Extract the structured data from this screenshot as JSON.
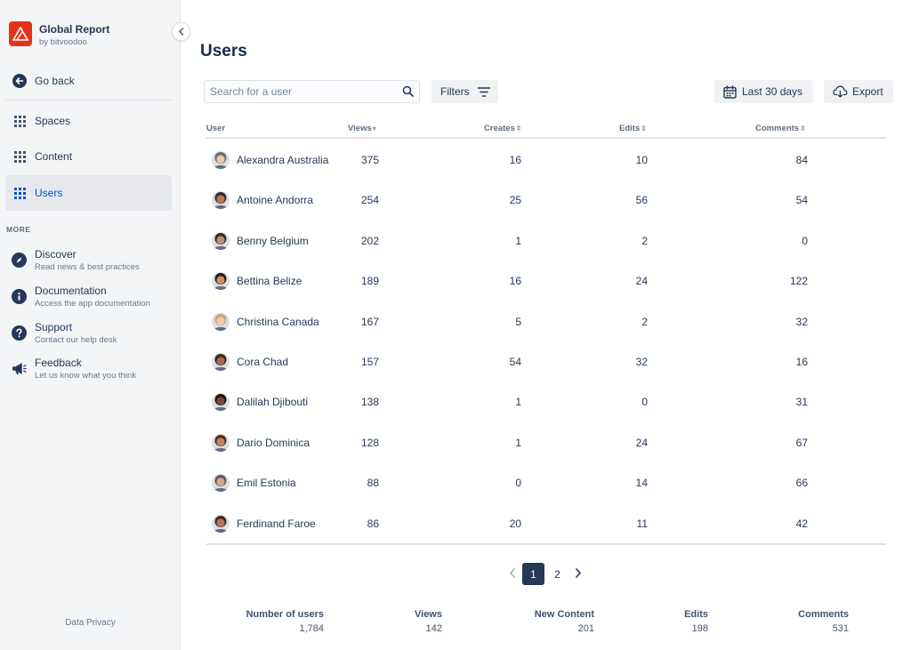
{
  "brand": {
    "title": "Global Report",
    "subtitle": "by bitvoodoo"
  },
  "sidebar": {
    "go_back": "Go back",
    "items": [
      {
        "label": "Spaces"
      },
      {
        "label": "Content"
      },
      {
        "label": "Users",
        "active": true
      }
    ],
    "more_label": "MORE",
    "more_items": [
      {
        "title": "Discover",
        "desc": "Read news & best practices",
        "icon": "compass-icon"
      },
      {
        "title": "Documentation",
        "desc": "Access the app documentation",
        "icon": "info-icon"
      },
      {
        "title": "Support",
        "desc": "Contact our help desk",
        "icon": "question-icon"
      },
      {
        "title": "Feedback",
        "desc": "Let us know what you think",
        "icon": "megaphone-icon"
      }
    ],
    "footer": "Data Privacy"
  },
  "main": {
    "title": "Users",
    "search_placeholder": "Search for a user",
    "filters_label": "Filters",
    "date_label": "Last 30 days",
    "export_label": "Export"
  },
  "table": {
    "columns": [
      "User",
      "Views",
      "Creates",
      "Edits",
      "Comments"
    ],
    "rows": [
      {
        "name": "Alexandra Australia",
        "views": "375",
        "creates": "16",
        "edits": "10",
        "comments": "84"
      },
      {
        "name": "Antoine Andorra",
        "views": "254",
        "creates": "25",
        "edits": "56",
        "comments": "54"
      },
      {
        "name": "Benny Belgium",
        "views": "202",
        "creates": "1",
        "edits": "2",
        "comments": "0"
      },
      {
        "name": "Bettina Belize",
        "views": "189",
        "creates": "16",
        "edits": "24",
        "comments": "122"
      },
      {
        "name": "Christina Canada",
        "views": "167",
        "creates": "5",
        "edits": "2",
        "comments": "32"
      },
      {
        "name": "Cora Chad",
        "views": "157",
        "creates": "54",
        "edits": "32",
        "comments": "16"
      },
      {
        "name": "Dalilah Djibouti",
        "views": "138",
        "creates": "1",
        "edits": "0",
        "comments": "31"
      },
      {
        "name": "Dario Dominica",
        "views": "128",
        "creates": "1",
        "edits": "24",
        "comments": "67"
      },
      {
        "name": "Emil Estonia",
        "views": "88",
        "creates": "0",
        "edits": "14",
        "comments": "66"
      },
      {
        "name": "Ferdinand Faroe",
        "views": "86",
        "creates": "20",
        "edits": "11",
        "comments": "42"
      }
    ]
  },
  "pagination": {
    "pages": [
      "1",
      "2"
    ],
    "current": "1"
  },
  "summary": [
    {
      "label": "Number of users",
      "value": "1,784"
    },
    {
      "label": "Views",
      "value": "142"
    },
    {
      "label": "New Content",
      "value": "201"
    },
    {
      "label": "Edits",
      "value": "198"
    },
    {
      "label": "Comments",
      "value": "531"
    }
  ],
  "colors": {
    "brand": "#E2341D",
    "active": "#0052CC",
    "text": "#172B4D",
    "page_current": "#253858"
  }
}
